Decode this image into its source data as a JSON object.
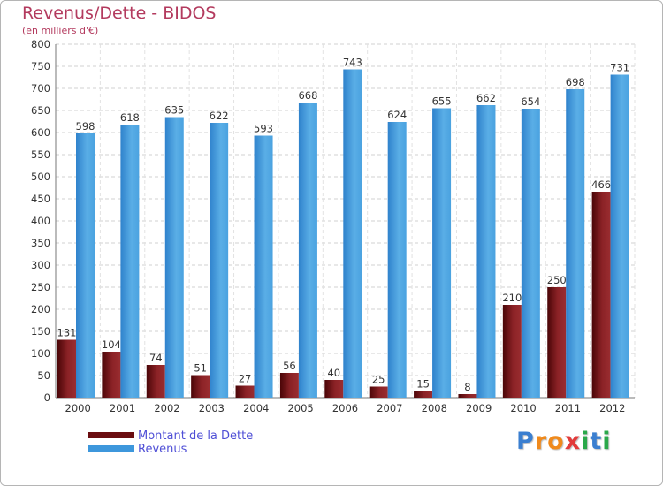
{
  "chart_data": {
    "type": "bar",
    "title": "Revenus/Dette - BIDOS",
    "subtitle": "(en milliers d'€)",
    "categories": [
      "2000",
      "2001",
      "2002",
      "2003",
      "2004",
      "2005",
      "2006",
      "2007",
      "2008",
      "2009",
      "2010",
      "2011",
      "2012"
    ],
    "series": [
      {
        "name": "Montant de la Dette",
        "color": "#7a1416",
        "values": [
          131,
          104,
          74,
          51,
          27,
          56,
          40,
          25,
          15,
          8,
          210,
          250,
          466
        ]
      },
      {
        "name": "Revenus",
        "color": "#3d97dc",
        "values": [
          598,
          618,
          635,
          622,
          593,
          668,
          743,
          624,
          655,
          662,
          654,
          698,
          731
        ]
      }
    ],
    "ylim": [
      0,
      800
    ],
    "yticks": [
      0,
      50,
      100,
      150,
      200,
      250,
      300,
      350,
      400,
      450,
      500,
      550,
      600,
      650,
      700,
      750,
      800
    ],
    "xlabel": "",
    "ylabel": "",
    "grid": true,
    "legend": "bottom-left"
  },
  "branding": {
    "logo_letters": [
      {
        "char": "P",
        "color": "#3b7fd0"
      },
      {
        "char": "r",
        "color": "#f08a1c"
      },
      {
        "char": "o",
        "color": "#f08a1c"
      },
      {
        "char": "x",
        "color": "#e23b3b"
      },
      {
        "char": "i",
        "color": "#2aa84a"
      },
      {
        "char": "t",
        "color": "#3b7fd0"
      },
      {
        "char": "i",
        "color": "#2aa84a"
      }
    ]
  }
}
